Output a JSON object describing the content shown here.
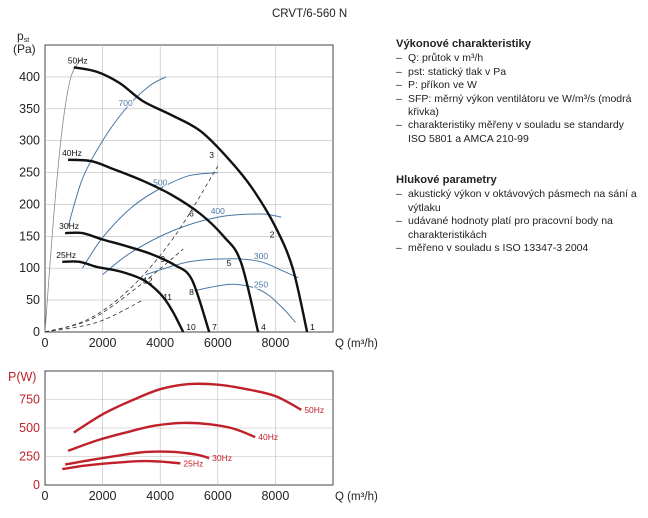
{
  "header": {
    "model": "CRVT/6-560 N"
  },
  "performance": {
    "title": "Výkonové charakteristiky",
    "items": [
      "Q: průtok v m³/h",
      "pst: statický tlak v Pa",
      "P: příkon ve W",
      "SFP: měrný výkon ventilátoru ve W/m³/s (modrá křivka)",
      "charakteristiky měřeny v souladu se standardy ISO 5801 a AMCA 210-99"
    ]
  },
  "noise": {
    "title": "Hlukové parametry",
    "items": [
      "akustický výkon v oktávových pásmech na sání a výtlaku",
      "udávané hodnoty platí pro pracovní body na charakteristikách",
      "měřeno v souladu s ISO 13347-3 2004"
    ]
  },
  "chart_data": [
    {
      "type": "line",
      "ylabel": "pst (Pa)",
      "xlabel": "Q (m³/h)",
      "xlim": [
        0,
        10000
      ],
      "ylim": [
        0,
        450
      ],
      "xticks": [
        0,
        2000,
        4000,
        6000,
        8000
      ],
      "yticks": [
        0,
        50,
        100,
        150,
        200,
        250,
        300,
        350,
        400
      ],
      "grid": true,
      "series": [
        {
          "name": "50Hz",
          "color": "#111111",
          "points": [
            [
              1000,
              415
            ],
            [
              1800,
              408
            ],
            [
              2600,
              390
            ],
            [
              3400,
              362
            ],
            [
              4400,
              340
            ],
            [
              5400,
              315
            ],
            [
              6400,
              270
            ],
            [
              7200,
              225
            ],
            [
              8000,
              165
            ],
            [
              8600,
              100
            ],
            [
              9100,
              0
            ]
          ]
        },
        {
          "name": "40Hz",
          "color": "#111111",
          "points": [
            [
              800,
              270
            ],
            [
              1600,
              268
            ],
            [
              2400,
              255
            ],
            [
              3400,
              237
            ],
            [
              4400,
              215
            ],
            [
              5400,
              185
            ],
            [
              6200,
              150
            ],
            [
              6800,
              110
            ],
            [
              7400,
              0
            ]
          ]
        },
        {
          "name": "30Hz",
          "color": "#111111",
          "points": [
            [
              700,
              155
            ],
            [
              1300,
              155
            ],
            [
              2000,
              145
            ],
            [
              2800,
              135
            ],
            [
              3700,
              122
            ],
            [
              4500,
              105
            ],
            [
              5100,
              82
            ],
            [
              5700,
              0
            ]
          ]
        },
        {
          "name": "25Hz",
          "color": "#111111",
          "points": [
            [
              600,
              110
            ],
            [
              1200,
              110
            ],
            [
              1800,
              102
            ],
            [
              2600,
              95
            ],
            [
              3400,
              82
            ],
            [
              4000,
              60
            ],
            [
              4400,
              35
            ],
            [
              4800,
              0
            ]
          ]
        }
      ],
      "sfp_curves": [
        {
          "label": "700",
          "color": "#4a78a8",
          "points": [
            [
              800,
              165
            ],
            [
              1300,
              240
            ],
            [
              2000,
              300
            ],
            [
              2800,
              350
            ],
            [
              3600,
              385
            ],
            [
              4200,
              400
            ]
          ]
        },
        {
          "label": "500",
          "color": "#4a78a8",
          "points": [
            [
              1300,
              100
            ],
            [
              2000,
              148
            ],
            [
              3000,
              195
            ],
            [
              4000,
              225
            ],
            [
              5000,
              245
            ],
            [
              6000,
              250
            ]
          ]
        },
        {
          "label": "400",
          "color": "#4a78a8",
          "points": [
            [
              2000,
              90
            ],
            [
              3000,
              125
            ],
            [
              4500,
              160
            ],
            [
              6000,
              180
            ],
            [
              7500,
              185
            ],
            [
              8200,
              180
            ]
          ]
        },
        {
          "label": "300",
          "color": "#4a78a8",
          "points": [
            [
              3500,
              90
            ],
            [
              5000,
              110
            ],
            [
              6500,
              115
            ],
            [
              7500,
              110
            ],
            [
              8300,
              95
            ],
            [
              8800,
              85
            ]
          ]
        },
        {
          "label": "250",
          "color": "#4a78a8",
          "points": [
            [
              5200,
              65
            ],
            [
              6500,
              75
            ],
            [
              7500,
              65
            ],
            [
              8200,
              40
            ],
            [
              8700,
              15
            ]
          ]
        }
      ],
      "system_curves": [
        {
          "label": "3",
          "points": [
            [
              0,
              0
            ],
            [
              1500,
              20
            ],
            [
              3000,
              70
            ],
            [
              4500,
              150
            ],
            [
              6000,
              260
            ],
            [
              5700,
              235
            ]
          ]
        },
        {
          "label": "6",
          "points": [
            [
              0,
              0
            ],
            [
              1600,
              20
            ],
            [
              3200,
              70
            ],
            [
              4800,
              130
            ],
            [
              5500,
              165
            ]
          ]
        },
        {
          "label": "9",
          "points": [
            [
              0,
              0
            ],
            [
              1800,
              15
            ],
            [
              3400,
              50
            ],
            [
              4300,
              82
            ]
          ]
        }
      ],
      "markers": [
        {
          "label": "1",
          "x": 9100,
          "y": 0
        },
        {
          "label": "2",
          "x": 7700,
          "y": 145
        },
        {
          "label": "3",
          "x": 5600,
          "y": 270
        },
        {
          "label": "4",
          "x": 7400,
          "y": 0
        },
        {
          "label": "5",
          "x": 6200,
          "y": 100
        },
        {
          "label": "6",
          "x": 4900,
          "y": 178
        },
        {
          "label": "7",
          "x": 5700,
          "y": 0
        },
        {
          "label": "8",
          "x": 4900,
          "y": 55
        },
        {
          "label": "9",
          "x": 3900,
          "y": 107
        },
        {
          "label": "10",
          "x": 4800,
          "y": 0
        },
        {
          "label": "11",
          "x": 4000,
          "y": 47
        },
        {
          "label": "12",
          "x": 3300,
          "y": 73
        }
      ]
    },
    {
      "type": "line",
      "ylabel": "P(W)",
      "xlabel": "Q (m³/h)",
      "xlim": [
        0,
        10000
      ],
      "ylim": [
        0,
        1000
      ],
      "xticks": [
        0,
        2000,
        4000,
        6000,
        8000
      ],
      "yticks": [
        0,
        250,
        500,
        750
      ],
      "grid": true,
      "series": [
        {
          "name": "50Hz",
          "color": "#c0202a",
          "points": [
            [
              1000,
              460
            ],
            [
              2000,
              620
            ],
            [
              3000,
              740
            ],
            [
              4000,
              840
            ],
            [
              5000,
              885
            ],
            [
              6000,
              880
            ],
            [
              7000,
              840
            ],
            [
              8000,
              780
            ],
            [
              8900,
              660
            ]
          ]
        },
        {
          "name": "40Hz",
          "color": "#c0202a",
          "points": [
            [
              800,
              300
            ],
            [
              1800,
              390
            ],
            [
              2800,
              460
            ],
            [
              3800,
              520
            ],
            [
              4800,
              545
            ],
            [
              5800,
              530
            ],
            [
              6600,
              490
            ],
            [
              7300,
              420
            ]
          ]
        },
        {
          "name": "30Hz",
          "color": "#c0202a",
          "points": [
            [
              700,
              180
            ],
            [
              1600,
              220
            ],
            [
              2600,
              260
            ],
            [
              3500,
              290
            ],
            [
              4500,
              290
            ],
            [
              5300,
              265
            ],
            [
              5700,
              235
            ]
          ]
        },
        {
          "name": "25Hz",
          "color": "#c0202a",
          "points": [
            [
              600,
              140
            ],
            [
              1400,
              170
            ],
            [
              2400,
              195
            ],
            [
              3400,
              210
            ],
            [
              4000,
              205
            ],
            [
              4700,
              190
            ]
          ]
        }
      ]
    }
  ]
}
